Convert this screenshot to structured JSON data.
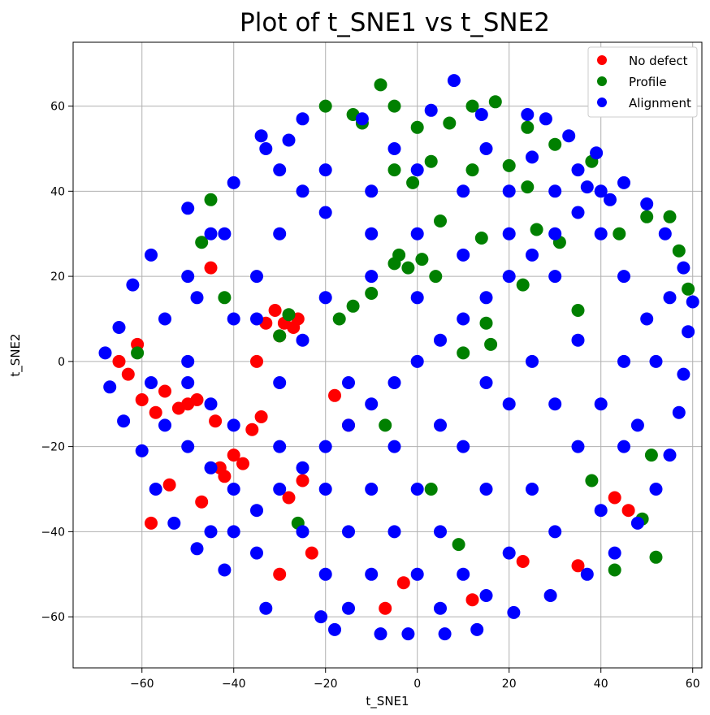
{
  "chart_data": {
    "type": "scatter",
    "title": "Plot of t_SNE1 vs t_SNE2",
    "xlabel": "t_SNE1",
    "ylabel": "t_SNE2",
    "xlim": [
      -75,
      62
    ],
    "ylim": [
      -72,
      75
    ],
    "xticks": [
      -60,
      -40,
      -20,
      0,
      20,
      40,
      60
    ],
    "yticks": [
      -60,
      -40,
      -20,
      0,
      20,
      40,
      60
    ],
    "grid": true,
    "legend_position": "top-right",
    "series": [
      {
        "name": "No defect",
        "color": "#ff0000",
        "points": [
          [
            -65,
            0
          ],
          [
            -63,
            -3
          ],
          [
            -60,
            -9
          ],
          [
            -57,
            -12
          ],
          [
            -55,
            -7
          ],
          [
            -52,
            -11
          ],
          [
            -50,
            -10
          ],
          [
            -48,
            -9
          ],
          [
            -45,
            22
          ],
          [
            -44,
            -14
          ],
          [
            -43,
            -25
          ],
          [
            -42,
            -27
          ],
          [
            -40,
            -22
          ],
          [
            -38,
            -24
          ],
          [
            -36,
            -16
          ],
          [
            -34,
            -13
          ],
          [
            -33,
            9
          ],
          [
            -31,
            12
          ],
          [
            -30,
            6
          ],
          [
            -29,
            9
          ],
          [
            -28,
            -32
          ],
          [
            -27,
            8
          ],
          [
            -26,
            10
          ],
          [
            -25,
            -28
          ],
          [
            -47,
            -33
          ],
          [
            -54,
            -29
          ],
          [
            -58,
            -38
          ],
          [
            -30,
            -50
          ],
          [
            -23,
            -45
          ],
          [
            -15,
            -15
          ],
          [
            -7,
            -58
          ],
          [
            -3,
            -52
          ],
          [
            12,
            -56
          ],
          [
            23,
            -47
          ],
          [
            35,
            -48
          ],
          [
            43,
            -32
          ],
          [
            46,
            -35
          ],
          [
            -61,
            4
          ],
          [
            -35,
            0
          ],
          [
            -18,
            -8
          ]
        ]
      },
      {
        "name": "Profile",
        "color": "#008000",
        "points": [
          [
            -8,
            65
          ],
          [
            -20,
            60
          ],
          [
            -14,
            58
          ],
          [
            -12,
            56
          ],
          [
            -5,
            60
          ],
          [
            0,
            55
          ],
          [
            7,
            56
          ],
          [
            12,
            60
          ],
          [
            17,
            61
          ],
          [
            24,
            55
          ],
          [
            30,
            51
          ],
          [
            38,
            47
          ],
          [
            -5,
            45
          ],
          [
            3,
            47
          ],
          [
            12,
            45
          ],
          [
            20,
            46
          ],
          [
            24,
            41
          ],
          [
            5,
            33
          ],
          [
            14,
            29
          ],
          [
            -4,
            25
          ],
          [
            -5,
            23
          ],
          [
            -2,
            22
          ],
          [
            1,
            24
          ],
          [
            4,
            20
          ],
          [
            -10,
            16
          ],
          [
            -14,
            13
          ],
          [
            -17,
            10
          ],
          [
            -28,
            11
          ],
          [
            -30,
            6
          ],
          [
            -45,
            38
          ],
          [
            -47,
            28
          ],
          [
            -42,
            15
          ],
          [
            15,
            9
          ],
          [
            23,
            18
          ],
          [
            31,
            28
          ],
          [
            44,
            30
          ],
          [
            50,
            34
          ],
          [
            55,
            34
          ],
          [
            57,
            26
          ],
          [
            59,
            17
          ],
          [
            38,
            -28
          ],
          [
            51,
            -22
          ],
          [
            49,
            -37
          ],
          [
            52,
            -46
          ],
          [
            43,
            -49
          ],
          [
            -7,
            -15
          ],
          [
            3,
            -30
          ],
          [
            9,
            -43
          ],
          [
            16,
            4
          ],
          [
            35,
            12
          ],
          [
            -61,
            2
          ],
          [
            -26,
            -38
          ],
          [
            10,
            2
          ],
          [
            26,
            31
          ],
          [
            -1,
            42
          ]
        ]
      },
      {
        "name": "Alignment",
        "color": "#0000ff",
        "points": [
          [
            0,
            0
          ],
          [
            5,
            5
          ],
          [
            -5,
            -5
          ],
          [
            10,
            10
          ],
          [
            -10,
            -10
          ],
          [
            15,
            15
          ],
          [
            -15,
            -15
          ],
          [
            20,
            20
          ],
          [
            -20,
            -20
          ],
          [
            25,
            25
          ],
          [
            -25,
            -25
          ],
          [
            30,
            30
          ],
          [
            -30,
            -30
          ],
          [
            35,
            35
          ],
          [
            -35,
            -35
          ],
          [
            40,
            40
          ],
          [
            -40,
            -40
          ],
          [
            -12,
            57
          ],
          [
            3,
            59
          ],
          [
            14,
            58
          ],
          [
            28,
            57
          ],
          [
            -28,
            52
          ],
          [
            -40,
            42
          ],
          [
            -50,
            36
          ],
          [
            -58,
            25
          ],
          [
            -62,
            18
          ],
          [
            -65,
            8
          ],
          [
            -68,
            2
          ],
          [
            -67,
            -6
          ],
          [
            -64,
            -14
          ],
          [
            -60,
            -21
          ],
          [
            -57,
            -30
          ],
          [
            -53,
            -38
          ],
          [
            -48,
            -44
          ],
          [
            -42,
            -49
          ],
          [
            -33,
            -58
          ],
          [
            -21,
            -60
          ],
          [
            -18,
            -63
          ],
          [
            -8,
            -64
          ],
          [
            -2,
            -64
          ],
          [
            6,
            -64
          ],
          [
            13,
            -63
          ],
          [
            21,
            -59
          ],
          [
            29,
            -55
          ],
          [
            37,
            -50
          ],
          [
            43,
            -45
          ],
          [
            48,
            -38
          ],
          [
            52,
            -30
          ],
          [
            55,
            -22
          ],
          [
            57,
            -12
          ],
          [
            58,
            -3
          ],
          [
            59,
            7
          ],
          [
            60,
            14
          ],
          [
            58,
            22
          ],
          [
            54,
            30
          ],
          [
            50,
            37
          ],
          [
            45,
            42
          ],
          [
            39,
            49
          ],
          [
            33,
            53
          ],
          [
            24,
            58
          ],
          [
            -45,
            30
          ],
          [
            -50,
            20
          ],
          [
            -55,
            10
          ],
          [
            -50,
            0
          ],
          [
            -45,
            -10
          ],
          [
            -40,
            10
          ],
          [
            -35,
            20
          ],
          [
            -30,
            30
          ],
          [
            -25,
            40
          ],
          [
            -20,
            45
          ],
          [
            -10,
            40
          ],
          [
            0,
            45
          ],
          [
            10,
            40
          ],
          [
            20,
            40
          ],
          [
            30,
            40
          ],
          [
            40,
            30
          ],
          [
            45,
            20
          ],
          [
            50,
            10
          ],
          [
            45,
            0
          ],
          [
            40,
            -10
          ],
          [
            45,
            -20
          ],
          [
            35,
            -20
          ],
          [
            25,
            -30
          ],
          [
            15,
            -30
          ],
          [
            5,
            -40
          ],
          [
            -5,
            -40
          ],
          [
            -15,
            -40
          ],
          [
            -25,
            -40
          ],
          [
            -35,
            -45
          ],
          [
            -40,
            -30
          ],
          [
            -50,
            -20
          ],
          [
            -45,
            -25
          ],
          [
            -30,
            -20
          ],
          [
            -20,
            -30
          ],
          [
            -10,
            -30
          ],
          [
            0,
            -30
          ],
          [
            10,
            -20
          ],
          [
            20,
            -10
          ],
          [
            30,
            -10
          ],
          [
            25,
            0
          ],
          [
            35,
            5
          ],
          [
            15,
            -5
          ],
          [
            5,
            -15
          ],
          [
            -5,
            -20
          ],
          [
            -15,
            -5
          ],
          [
            -25,
            5
          ],
          [
            -20,
            15
          ],
          [
            -10,
            20
          ],
          [
            0,
            15
          ],
          [
            10,
            25
          ],
          [
            20,
            30
          ],
          [
            30,
            20
          ],
          [
            -30,
            -5
          ],
          [
            -40,
            -15
          ],
          [
            -50,
            -5
          ],
          [
            -35,
            10
          ],
          [
            -10,
            30
          ],
          [
            0,
            30
          ],
          [
            10,
            -50
          ],
          [
            0,
            -50
          ],
          [
            -10,
            -50
          ],
          [
            -20,
            -50
          ],
          [
            20,
            -45
          ],
          [
            30,
            -40
          ],
          [
            40,
            -35
          ],
          [
            -30,
            45
          ],
          [
            -20,
            35
          ],
          [
            -5,
            50
          ],
          [
            15,
            50
          ],
          [
            25,
            48
          ],
          [
            35,
            45
          ],
          [
            -42,
            30
          ],
          [
            -55,
            -15
          ],
          [
            -58,
            -5
          ],
          [
            -48,
            15
          ],
          [
            -15,
            -58
          ],
          [
            5,
            -58
          ],
          [
            15,
            -55
          ],
          [
            48,
            -15
          ],
          [
            52,
            0
          ],
          [
            55,
            15
          ],
          [
            42,
            38
          ],
          [
            -33,
            50
          ],
          [
            -45,
            -40
          ],
          [
            8,
            66
          ],
          [
            -25,
            57
          ],
          [
            -34,
            53
          ],
          [
            37,
            41
          ]
        ]
      }
    ]
  }
}
